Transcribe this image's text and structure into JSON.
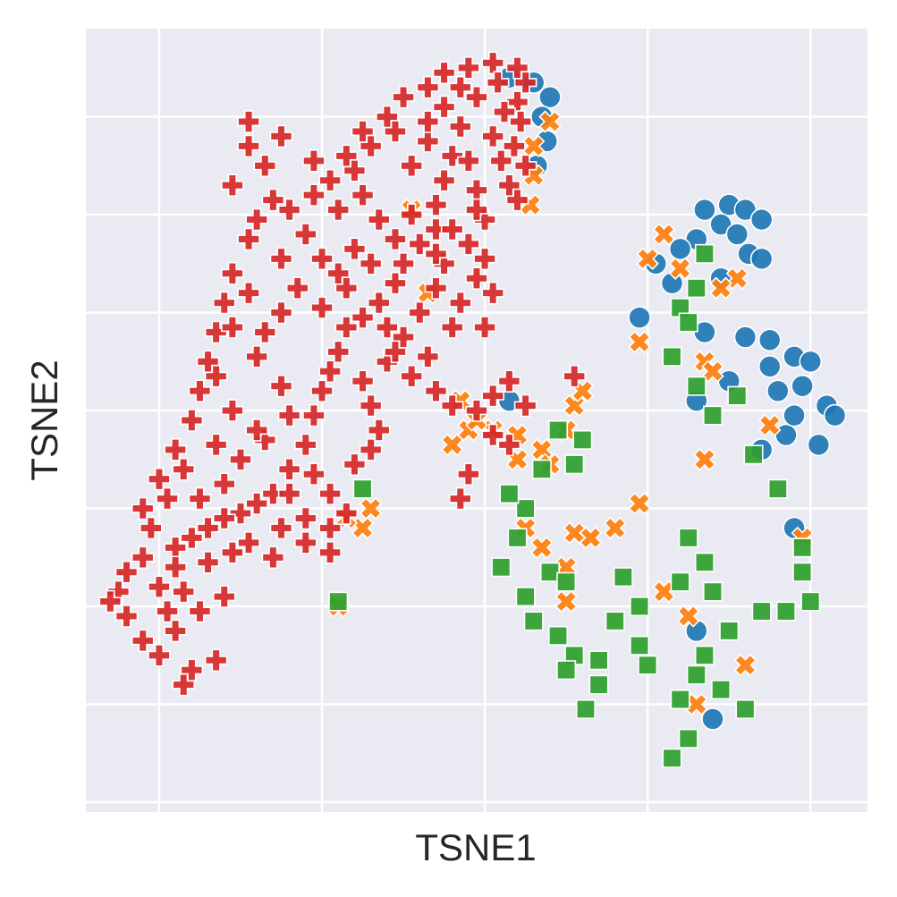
{
  "chart_data": {
    "type": "scatter",
    "title": "",
    "xlabel": "TSNE1",
    "ylabel": "TSNE2",
    "xlim": [
      -2.45,
      2.35
    ],
    "ylim": [
      -4.1,
      3.9
    ],
    "grid": true,
    "legend": "none",
    "x_ticks": [
      -2,
      -1,
      0,
      1,
      2
    ],
    "y_ticks": [
      -4,
      -3,
      -2,
      -1,
      0,
      1,
      2,
      3
    ],
    "tick_labels_shown": false,
    "style": {
      "background": "#eaeaf2",
      "grid_color": "#ffffff"
    },
    "series": [
      {
        "marker": "circle",
        "color": "#1f77b4",
        "points": [
          [
            1.35,
            2.05
          ],
          [
            1.5,
            2.1
          ],
          [
            1.6,
            2.05
          ],
          [
            1.7,
            1.95
          ],
          [
            1.45,
            1.9
          ],
          [
            1.3,
            1.75
          ],
          [
            1.55,
            1.8
          ],
          [
            1.62,
            1.6
          ],
          [
            1.7,
            1.55
          ],
          [
            1.2,
            1.65
          ],
          [
            1.05,
            1.5
          ],
          [
            1.15,
            1.3
          ],
          [
            0.95,
            0.95
          ],
          [
            1.35,
            0.8
          ],
          [
            1.6,
            0.75
          ],
          [
            1.75,
            0.72
          ],
          [
            1.9,
            0.55
          ],
          [
            2.0,
            0.5
          ],
          [
            1.8,
            0.2
          ],
          [
            1.95,
            0.25
          ],
          [
            2.1,
            0.05
          ],
          [
            2.15,
            -0.05
          ],
          [
            1.85,
            -0.25
          ],
          [
            2.05,
            -0.35
          ],
          [
            1.7,
            -0.4
          ],
          [
            1.5,
            0.3
          ],
          [
            1.3,
            0.1
          ],
          [
            0.15,
            3.4
          ],
          [
            0.3,
            3.35
          ],
          [
            0.4,
            3.2
          ],
          [
            0.35,
            3.0
          ],
          [
            0.38,
            2.75
          ],
          [
            0.32,
            2.5
          ],
          [
            0.15,
            0.1
          ],
          [
            1.9,
            -1.2
          ],
          [
            1.3,
            -2.25
          ],
          [
            1.4,
            -3.15
          ],
          [
            1.75,
            0.45
          ],
          [
            1.45,
            1.35
          ],
          [
            1.9,
            -0.05
          ]
        ]
      },
      {
        "marker": "x",
        "color": "#ff7f0e",
        "points": [
          [
            1.1,
            1.8
          ],
          [
            1.0,
            1.55
          ],
          [
            1.2,
            1.45
          ],
          [
            1.55,
            1.35
          ],
          [
            1.45,
            1.25
          ],
          [
            0.95,
            0.7
          ],
          [
            1.35,
            0.5
          ],
          [
            1.4,
            0.4
          ],
          [
            1.75,
            -0.15
          ],
          [
            1.35,
            -0.5
          ],
          [
            0.4,
            2.95
          ],
          [
            0.3,
            2.7
          ],
          [
            0.3,
            2.4
          ],
          [
            0.28,
            2.1
          ],
          [
            -0.45,
            2.05
          ],
          [
            -0.35,
            1.2
          ],
          [
            -0.15,
            0.1
          ],
          [
            -0.1,
            -0.2
          ],
          [
            -0.2,
            -0.35
          ],
          [
            0.05,
            -0.2
          ],
          [
            0.2,
            -0.25
          ],
          [
            0.35,
            -0.4
          ],
          [
            0.5,
            -0.2
          ],
          [
            0.55,
            0.05
          ],
          [
            0.6,
            0.2
          ],
          [
            0.4,
            -0.55
          ],
          [
            0.2,
            -0.5
          ],
          [
            0.25,
            -1.2
          ],
          [
            0.35,
            -1.4
          ],
          [
            0.5,
            -1.6
          ],
          [
            0.55,
            -1.25
          ],
          [
            0.65,
            -1.3
          ],
          [
            0.8,
            -1.2
          ],
          [
            0.95,
            -0.95
          ],
          [
            -0.7,
            -1.0
          ],
          [
            -0.75,
            -1.2
          ],
          [
            -0.85,
            -1.1
          ],
          [
            -0.9,
            -2.0
          ],
          [
            1.25,
            -2.1
          ],
          [
            1.3,
            -3.0
          ],
          [
            1.6,
            -2.6
          ],
          [
            1.95,
            -1.3
          ],
          [
            1.1,
            -1.85
          ],
          [
            0.5,
            -1.95
          ],
          [
            -0.05,
            -0.1
          ]
        ]
      },
      {
        "marker": "square",
        "color": "#2ca02c",
        "points": [
          [
            1.35,
            1.6
          ],
          [
            1.3,
            1.25
          ],
          [
            1.2,
            1.05
          ],
          [
            1.25,
            0.9
          ],
          [
            1.15,
            0.55
          ],
          [
            1.3,
            0.25
          ],
          [
            1.55,
            0.15
          ],
          [
            1.4,
            -0.05
          ],
          [
            1.65,
            -0.45
          ],
          [
            1.8,
            -0.8
          ],
          [
            0.45,
            -0.2
          ],
          [
            0.6,
            -0.3
          ],
          [
            0.35,
            -0.6
          ],
          [
            0.55,
            -0.55
          ],
          [
            0.2,
            -1.3
          ],
          [
            0.4,
            -1.65
          ],
          [
            0.25,
            -1.9
          ],
          [
            0.5,
            -1.75
          ],
          [
            0.45,
            -2.3
          ],
          [
            0.55,
            -2.5
          ],
          [
            0.5,
            -2.65
          ],
          [
            0.7,
            -2.8
          ],
          [
            0.62,
            -3.05
          ],
          [
            0.85,
            -1.7
          ],
          [
            0.95,
            -2.0
          ],
          [
            0.8,
            -2.15
          ],
          [
            0.95,
            -2.4
          ],
          [
            1.25,
            -1.3
          ],
          [
            1.35,
            -1.55
          ],
          [
            1.2,
            -1.75
          ],
          [
            1.4,
            -1.85
          ],
          [
            1.35,
            -2.5
          ],
          [
            1.3,
            -2.7
          ],
          [
            1.2,
            -2.95
          ],
          [
            1.45,
            -2.85
          ],
          [
            1.6,
            -3.05
          ],
          [
            1.25,
            -3.35
          ],
          [
            1.15,
            -3.55
          ],
          [
            1.5,
            -2.25
          ],
          [
            1.7,
            -2.05
          ],
          [
            1.85,
            -2.05
          ],
          [
            1.95,
            -1.65
          ],
          [
            2.0,
            -1.95
          ],
          [
            1.95,
            -1.4
          ],
          [
            -0.75,
            -0.8
          ],
          [
            -0.9,
            -1.95
          ],
          [
            0.1,
            -1.6
          ],
          [
            0.3,
            -2.15
          ],
          [
            0.7,
            -2.55
          ],
          [
            1.0,
            -2.6
          ],
          [
            0.25,
            -1.0
          ],
          [
            0.15,
            -0.85
          ]
        ]
      },
      {
        "marker": "plus",
        "color": "#d62728",
        "points": [
          [
            -1.45,
            2.7
          ],
          [
            -1.35,
            2.5
          ],
          [
            -1.3,
            2.15
          ],
          [
            -1.2,
            2.05
          ],
          [
            -1.05,
            2.2
          ],
          [
            -0.95,
            2.35
          ],
          [
            -0.8,
            2.45
          ],
          [
            -0.7,
            2.7
          ],
          [
            -0.6,
            3.0
          ],
          [
            -0.5,
            3.2
          ],
          [
            -0.35,
            3.3
          ],
          [
            -0.25,
            3.45
          ],
          [
            -0.1,
            3.5
          ],
          [
            0.05,
            3.55
          ],
          [
            0.2,
            3.5
          ],
          [
            0.25,
            3.35
          ],
          [
            0.2,
            3.15
          ],
          [
            0.22,
            2.95
          ],
          [
            0.18,
            2.7
          ],
          [
            0.25,
            2.5
          ],
          [
            0.15,
            2.3
          ],
          [
            -0.05,
            3.2
          ],
          [
            -0.15,
            2.9
          ],
          [
            -0.2,
            2.6
          ],
          [
            -0.25,
            2.35
          ],
          [
            -0.3,
            2.1
          ],
          [
            -0.3,
            1.85
          ],
          [
            -0.4,
            1.7
          ],
          [
            -0.5,
            1.5
          ],
          [
            -0.55,
            1.3
          ],
          [
            -0.65,
            1.1
          ],
          [
            -0.75,
            0.95
          ],
          [
            -0.85,
            0.85
          ],
          [
            -0.9,
            0.6
          ],
          [
            -0.95,
            0.4
          ],
          [
            -1.0,
            0.2
          ],
          [
            -1.05,
            -0.05
          ],
          [
            -1.1,
            -0.35
          ],
          [
            -1.2,
            -0.6
          ],
          [
            -1.3,
            -0.85
          ],
          [
            -1.5,
            -1.05
          ],
          [
            -1.7,
            -1.2
          ],
          [
            -1.9,
            -1.4
          ],
          [
            -2.1,
            -1.5
          ],
          [
            -2.2,
            -1.65
          ],
          [
            -2.25,
            -1.85
          ],
          [
            -2.2,
            -2.1
          ],
          [
            -2.1,
            -2.35
          ],
          [
            -2.0,
            -2.5
          ],
          [
            -1.9,
            -2.25
          ],
          [
            -1.75,
            -2.05
          ],
          [
            -1.6,
            -1.9
          ],
          [
            -1.55,
            1.4
          ],
          [
            -1.6,
            1.1
          ],
          [
            -1.65,
            0.8
          ],
          [
            -1.7,
            0.5
          ],
          [
            -1.75,
            0.2
          ],
          [
            -1.8,
            -0.1
          ],
          [
            -1.9,
            -0.4
          ],
          [
            -2.0,
            -0.7
          ],
          [
            -2.1,
            -1.0
          ],
          [
            -1.45,
            1.75
          ],
          [
            -1.25,
            1.55
          ],
          [
            -1.15,
            1.25
          ],
          [
            -1.0,
            1.05
          ],
          [
            -0.85,
            1.25
          ],
          [
            -0.7,
            1.5
          ],
          [
            -0.55,
            1.75
          ],
          [
            -0.45,
            2.0
          ],
          [
            -1.4,
            0.55
          ],
          [
            -1.25,
            0.25
          ],
          [
            -1.2,
            -0.05
          ],
          [
            -1.35,
            -0.3
          ],
          [
            -1.5,
            -0.5
          ],
          [
            -1.6,
            -0.75
          ],
          [
            -1.75,
            -0.9
          ],
          [
            -1.55,
            -1.45
          ],
          [
            -1.3,
            -1.5
          ],
          [
            -1.1,
            -1.35
          ],
          [
            -0.95,
            -1.2
          ],
          [
            -0.85,
            -1.05
          ],
          [
            -0.95,
            -0.85
          ],
          [
            -1.05,
            -0.65
          ],
          [
            -0.8,
            -0.55
          ],
          [
            -0.7,
            -0.4
          ],
          [
            -0.65,
            -0.2
          ],
          [
            -0.7,
            0.05
          ],
          [
            -0.75,
            0.3
          ],
          [
            -0.6,
            0.5
          ],
          [
            -0.5,
            0.75
          ],
          [
            -0.4,
            1.0
          ],
          [
            -0.3,
            1.25
          ],
          [
            -0.25,
            1.5
          ],
          [
            -0.1,
            1.7
          ],
          [
            0.0,
            1.95
          ],
          [
            -0.05,
            2.25
          ],
          [
            -0.1,
            2.55
          ],
          [
            -0.3,
            0.2
          ],
          [
            -0.2,
            0.05
          ],
          [
            -0.05,
            0.0
          ],
          [
            0.05,
            -0.25
          ],
          [
            0.15,
            -0.35
          ],
          [
            0.25,
            0.05
          ],
          [
            0.55,
            0.35
          ],
          [
            -0.1,
            -0.65
          ],
          [
            -0.15,
            -0.9
          ],
          [
            -1.65,
            -2.55
          ],
          [
            -1.8,
            -2.65
          ],
          [
            -1.85,
            -2.8
          ],
          [
            -1.9,
            -1.6
          ],
          [
            -2.0,
            -1.8
          ],
          [
            -2.3,
            -1.95
          ],
          [
            -1.4,
            1.95
          ],
          [
            -1.55,
            2.3
          ],
          [
            -1.45,
            2.95
          ],
          [
            -1.25,
            2.8
          ],
          [
            -1.05,
            2.55
          ],
          [
            -0.9,
            2.05
          ],
          [
            -0.75,
            2.2
          ],
          [
            -0.65,
            1.95
          ],
          [
            -0.45,
            2.5
          ],
          [
            -0.35,
            2.75
          ],
          [
            -0.55,
            2.85
          ],
          [
            -0.75,
            2.85
          ],
          [
            -0.85,
            2.6
          ],
          [
            -1.1,
            1.8
          ],
          [
            -1.0,
            1.55
          ],
          [
            -0.9,
            1.4
          ],
          [
            -0.8,
            1.65
          ],
          [
            -1.25,
            1.0
          ],
          [
            -1.35,
            0.8
          ],
          [
            -1.45,
            1.2
          ],
          [
            -1.55,
            0.85
          ],
          [
            -1.65,
            0.35
          ],
          [
            -1.55,
            0.0
          ],
          [
            -1.4,
            -0.2
          ],
          [
            -1.65,
            -0.35
          ],
          [
            -1.85,
            -0.6
          ],
          [
            -1.95,
            -0.9
          ],
          [
            -2.05,
            -1.2
          ],
          [
            -1.8,
            -1.3
          ],
          [
            -1.6,
            -1.1
          ],
          [
            -1.4,
            -0.95
          ],
          [
            -1.2,
            -0.85
          ],
          [
            -1.1,
            -1.1
          ],
          [
            -0.95,
            -1.45
          ],
          [
            -1.25,
            -1.2
          ],
          [
            -1.45,
            -1.35
          ],
          [
            -1.7,
            -1.55
          ],
          [
            -1.85,
            -1.85
          ],
          [
            -1.95,
            -2.05
          ],
          [
            -0.6,
            0.85
          ],
          [
            -0.55,
            0.6
          ],
          [
            -0.45,
            0.35
          ],
          [
            -0.35,
            0.55
          ],
          [
            -0.2,
            0.85
          ],
          [
            -0.15,
            1.1
          ],
          [
            -0.05,
            1.35
          ],
          [
            0.0,
            1.55
          ],
          [
            0.05,
            1.2
          ],
          [
            0.0,
            0.85
          ],
          [
            0.15,
            0.3
          ],
          [
            0.05,
            0.15
          ],
          [
            -0.25,
            3.1
          ],
          [
            -0.35,
            2.95
          ],
          [
            -0.15,
            3.3
          ],
          [
            0.08,
            3.35
          ],
          [
            0.12,
            3.05
          ],
          [
            0.05,
            2.8
          ],
          [
            0.1,
            2.55
          ],
          [
            0.2,
            2.15
          ],
          [
            -0.05,
            2.05
          ],
          [
            -0.2,
            1.85
          ],
          [
            -0.3,
            1.6
          ]
        ]
      }
    ]
  }
}
